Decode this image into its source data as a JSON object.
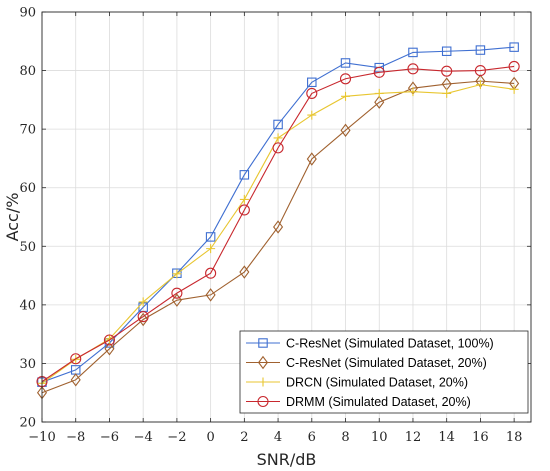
{
  "chart_data": {
    "type": "line",
    "xlabel": "SNR/dB",
    "ylabel": "Acc/%",
    "xlim": [
      -10,
      19
    ],
    "ylim": [
      20,
      90
    ],
    "xticks": [
      -10,
      -8,
      -6,
      -4,
      -2,
      0,
      2,
      4,
      6,
      8,
      10,
      12,
      14,
      16,
      18
    ],
    "xtick_labels": [
      "−10",
      "−8",
      "−6",
      "−4",
      "−2",
      "0",
      "2",
      "4",
      "6",
      "8",
      "10",
      "12",
      "14",
      "16",
      "18"
    ],
    "yticks": [
      20,
      30,
      40,
      50,
      60,
      70,
      80,
      90
    ],
    "grid": true,
    "legend_position": "bottom-right",
    "x": [
      -10,
      -8,
      -6,
      -4,
      -2,
      0,
      2,
      4,
      6,
      8,
      10,
      12,
      14,
      16,
      18
    ],
    "series": [
      {
        "name": "C-ResNet (Simulated Dataset, 100%)",
        "color": "#3f6fd1",
        "marker": "square",
        "values": [
          26.8,
          28.9,
          33.5,
          39.6,
          45.4,
          51.6,
          62.2,
          70.8,
          78.0,
          81.3,
          80.5,
          83.1,
          83.3,
          83.5,
          84.0
        ]
      },
      {
        "name": "C-ResNet (Simulated Dataset, 20%)",
        "color": "#a0612f",
        "marker": "diamond",
        "values": [
          25.0,
          27.2,
          32.5,
          37.5,
          40.8,
          41.7,
          45.6,
          53.3,
          64.9,
          69.8,
          74.6,
          77.0,
          77.7,
          78.2,
          77.8
        ]
      },
      {
        "name": "DRCN (Simulated Dataset, 20%)",
        "color": "#e8c631",
        "marker": "plus",
        "values": [
          26.6,
          30.7,
          34.2,
          40.5,
          45.3,
          49.6,
          58.0,
          68.5,
          72.4,
          75.6,
          76.1,
          76.4,
          76.1,
          77.6,
          76.8
        ]
      },
      {
        "name": "DRMM (Simulated Dataset, 20%)",
        "color": "#c8282e",
        "marker": "circle",
        "values": [
          26.9,
          30.8,
          34.0,
          38.0,
          42.0,
          45.4,
          56.2,
          66.8,
          76.1,
          78.6,
          79.7,
          80.3,
          79.9,
          80.0,
          80.7
        ]
      }
    ]
  }
}
